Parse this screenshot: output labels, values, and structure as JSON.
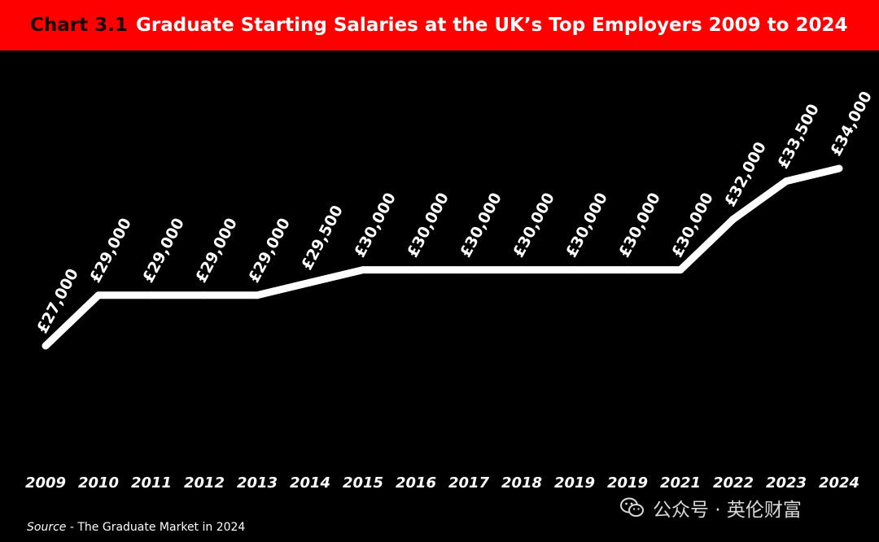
{
  "header": {
    "chart_number": "Chart 3.1",
    "title": "Graduate Starting Salaries at the UK’s Top Employers 2009 to 2024"
  },
  "source": {
    "label": "Source",
    "text": " - The Graduate Market in 2024"
  },
  "watermark": {
    "icon": "wechat-icon",
    "text": "公众号 · 英伦财富"
  },
  "colors": {
    "header_background": "#ff0000",
    "background": "#000000",
    "line": "#ffffff",
    "text": "#ffffff"
  },
  "chart_data": {
    "type": "line",
    "title": "Graduate Starting Salaries at the UK’s Top Employers 2009 to 2024",
    "categories": [
      "2009",
      "2010",
      "2011",
      "2012",
      "2013",
      "2014",
      "2015",
      "2016",
      "2017",
      "2018",
      "2019",
      "2019",
      "2021",
      "2022",
      "2023",
      "2024"
    ],
    "values": [
      27000,
      29000,
      29000,
      29000,
      29000,
      29500,
      30000,
      30000,
      30000,
      30000,
      30000,
      30000,
      30000,
      32000,
      33500,
      34000
    ],
    "data_labels": [
      "£27,000",
      "£29,000",
      "£29,000",
      "£29,000",
      "£29,000",
      "£29,500",
      "£30,000",
      "£30,000",
      "£30,000",
      "£30,000",
      "£30,000",
      "£30,000",
      "£30,000",
      "£32,000",
      "£33,500",
      "£34,000"
    ],
    "grid": false,
    "legend": "none"
  }
}
